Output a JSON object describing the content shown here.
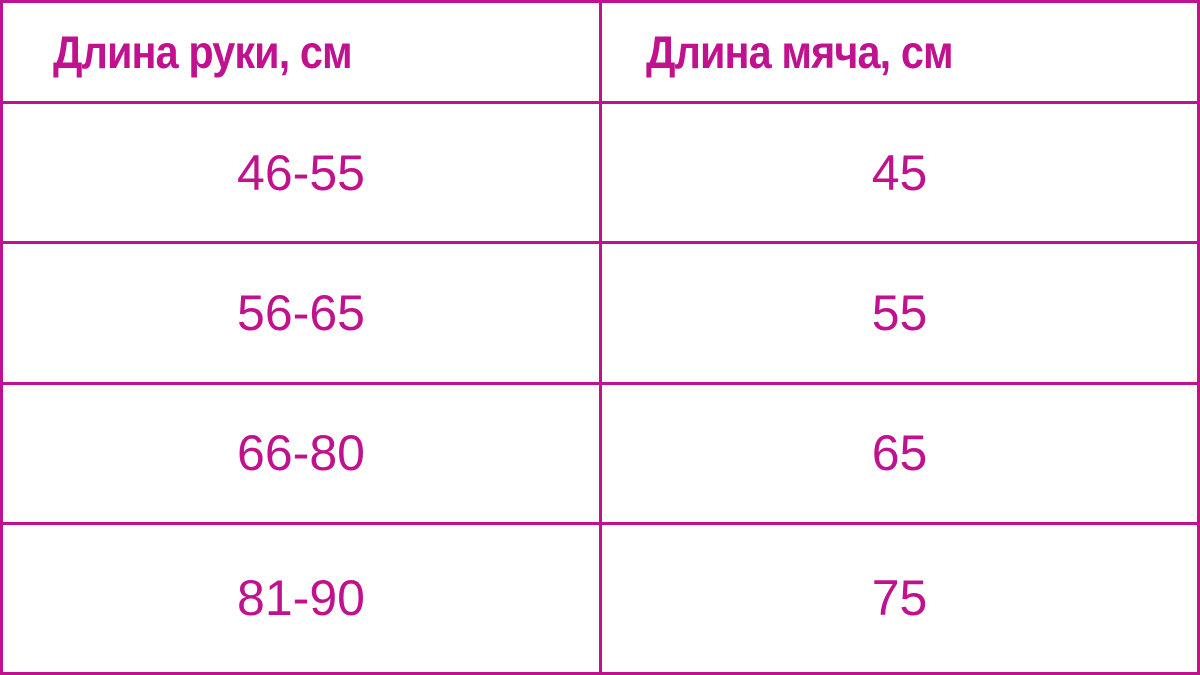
{
  "accent_color": "#c0128e",
  "table": {
    "headers": [
      "Длина руки, см",
      "Длина мяча, см"
    ],
    "rows": [
      [
        "46-55",
        "45"
      ],
      [
        "56-65",
        "55"
      ],
      [
        "66-80",
        "65"
      ],
      [
        "81-90",
        "75"
      ]
    ]
  }
}
